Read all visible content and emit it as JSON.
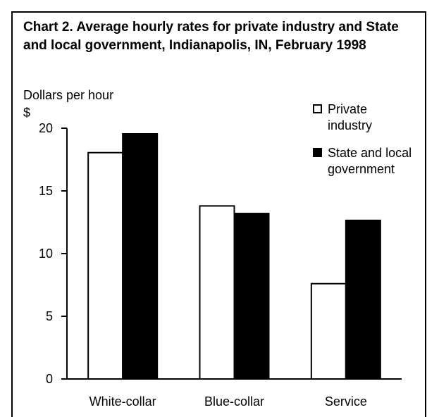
{
  "chart_data": {
    "type": "bar",
    "title": "Chart 2. Average hourly rates for private industry and State and local government, Indianapolis, IN, February 1998",
    "ylabel": "Dollars per hour",
    "yunit": "$",
    "xlabel": "",
    "categories": [
      "White-collar",
      "Blue-collar",
      "Service"
    ],
    "series": [
      {
        "name": "Private industry",
        "values": [
          18.05,
          13.8,
          7.6
        ],
        "color": "#ffffff"
      },
      {
        "name": "State and local government",
        "values": [
          19.55,
          13.2,
          12.65
        ],
        "color": "#000000"
      }
    ],
    "ylim": [
      0,
      20
    ],
    "yticks": [
      0,
      5,
      10,
      15,
      20
    ],
    "grid": false,
    "legend_position": "top-right"
  },
  "colors": {
    "outline": "#000000",
    "background": "#ffffff"
  }
}
